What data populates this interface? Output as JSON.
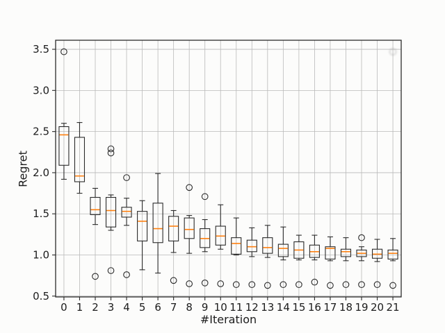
{
  "figure": {
    "background": "#fcfcfb",
    "plot_background": "#fcfcfb",
    "grid_color": "#b9b9b9",
    "spine_color": "#2a2a2a",
    "tick_text_color": "#1c1c1c",
    "median_color": "#ff7f0e",
    "box_edge_color": "#2a2a2a"
  },
  "chart_data": {
    "type": "boxplot",
    "title": "",
    "xlabel": "#Iteration",
    "ylabel": "Regret",
    "grid": true,
    "legend": null,
    "xlim": [
      -0.53,
      21.53
    ],
    "ylim": [
      0.49,
      3.61
    ],
    "xticks": [
      0,
      1,
      2,
      3,
      4,
      5,
      6,
      7,
      8,
      9,
      10,
      11,
      12,
      13,
      14,
      15,
      16,
      17,
      18,
      19,
      20,
      21
    ],
    "yticks": [
      0.5,
      1.0,
      1.5,
      2.0,
      2.5,
      3.0,
      3.5
    ],
    "ytick_labels": [
      "0.5",
      "1.0",
      "1.5",
      "2.0",
      "2.5",
      "3.0",
      "3.5"
    ],
    "boxes": [
      {
        "x": 0,
        "whislo": 1.92,
        "q1": 2.09,
        "med": 2.46,
        "q3": 2.56,
        "whishi": 2.6,
        "fliers": [
          3.47
        ]
      },
      {
        "x": 1,
        "whislo": 1.75,
        "q1": 1.89,
        "med": 1.96,
        "q3": 2.43,
        "whishi": 2.61,
        "fliers": []
      },
      {
        "x": 2,
        "whislo": 1.37,
        "q1": 1.49,
        "med": 1.55,
        "q3": 1.7,
        "whishi": 1.81,
        "fliers": [
          0.74
        ]
      },
      {
        "x": 3,
        "whislo": 1.3,
        "q1": 1.34,
        "med": 1.54,
        "q3": 1.7,
        "whishi": 1.73,
        "fliers": [
          2.29,
          2.24,
          0.81
        ]
      },
      {
        "x": 4,
        "whislo": 1.36,
        "q1": 1.46,
        "med": 1.53,
        "q3": 1.58,
        "whishi": 1.69,
        "fliers": [
          1.94,
          0.76
        ]
      },
      {
        "x": 5,
        "whislo": 0.82,
        "q1": 1.17,
        "med": 1.41,
        "q3": 1.53,
        "whishi": 1.66,
        "fliers": []
      },
      {
        "x": 6,
        "whislo": 0.78,
        "q1": 1.15,
        "med": 1.32,
        "q3": 1.63,
        "whishi": 1.99,
        "fliers": []
      },
      {
        "x": 7,
        "whislo": 1.03,
        "q1": 1.17,
        "med": 1.35,
        "q3": 1.47,
        "whishi": 1.54,
        "fliers": [
          0.69
        ]
      },
      {
        "x": 8,
        "whislo": 1.02,
        "q1": 1.2,
        "med": 1.31,
        "q3": 1.45,
        "whishi": 1.48,
        "fliers": [
          1.82,
          0.65
        ]
      },
      {
        "x": 9,
        "whislo": 1.04,
        "q1": 1.09,
        "med": 1.2,
        "q3": 1.32,
        "whishi": 1.43,
        "fliers": [
          1.71,
          0.66
        ]
      },
      {
        "x": 10,
        "whislo": 1.07,
        "q1": 1.12,
        "med": 1.23,
        "q3": 1.35,
        "whishi": 1.61,
        "fliers": [
          0.65
        ]
      },
      {
        "x": 11,
        "whislo": 1.0,
        "q1": 1.01,
        "med": 1.14,
        "q3": 1.21,
        "whishi": 1.45,
        "fliers": [
          0.64
        ]
      },
      {
        "x": 12,
        "whislo": 0.98,
        "q1": 1.04,
        "med": 1.1,
        "q3": 1.18,
        "whishi": 1.33,
        "fliers": [
          0.64
        ]
      },
      {
        "x": 13,
        "whislo": 0.97,
        "q1": 1.02,
        "med": 1.09,
        "q3": 1.21,
        "whishi": 1.36,
        "fliers": [
          0.63
        ]
      },
      {
        "x": 14,
        "whislo": 0.94,
        "q1": 0.98,
        "med": 1.08,
        "q3": 1.13,
        "whishi": 1.34,
        "fliers": [
          0.64
        ]
      },
      {
        "x": 15,
        "whislo": 0.94,
        "q1": 0.96,
        "med": 1.06,
        "q3": 1.16,
        "whishi": 1.24,
        "fliers": [
          0.64
        ]
      },
      {
        "x": 16,
        "whislo": 0.94,
        "q1": 0.97,
        "med": 1.04,
        "q3": 1.12,
        "whishi": 1.24,
        "fliers": [
          0.67
        ]
      },
      {
        "x": 17,
        "whislo": 0.93,
        "q1": 0.95,
        "med": 1.08,
        "q3": 1.1,
        "whishi": 1.22,
        "fliers": [
          0.63
        ]
      },
      {
        "x": 18,
        "whislo": 0.93,
        "q1": 0.98,
        "med": 1.04,
        "q3": 1.07,
        "whishi": 1.21,
        "fliers": [
          0.64
        ]
      },
      {
        "x": 19,
        "whislo": 0.93,
        "q1": 0.98,
        "med": 1.02,
        "q3": 1.06,
        "whishi": 1.1,
        "fliers": [
          1.21,
          0.64
        ]
      },
      {
        "x": 20,
        "whislo": 0.92,
        "q1": 0.96,
        "med": 1.01,
        "q3": 1.07,
        "whishi": 1.19,
        "fliers": [
          0.64
        ]
      },
      {
        "x": 21,
        "whislo": 0.93,
        "q1": 0.95,
        "med": 1.02,
        "q3": 1.06,
        "whishi": 1.2,
        "fliers": [
          0.63
        ]
      }
    ],
    "ghost_marker": {
      "x": 21,
      "value": 3.47,
      "opacity": 0.35
    }
  }
}
